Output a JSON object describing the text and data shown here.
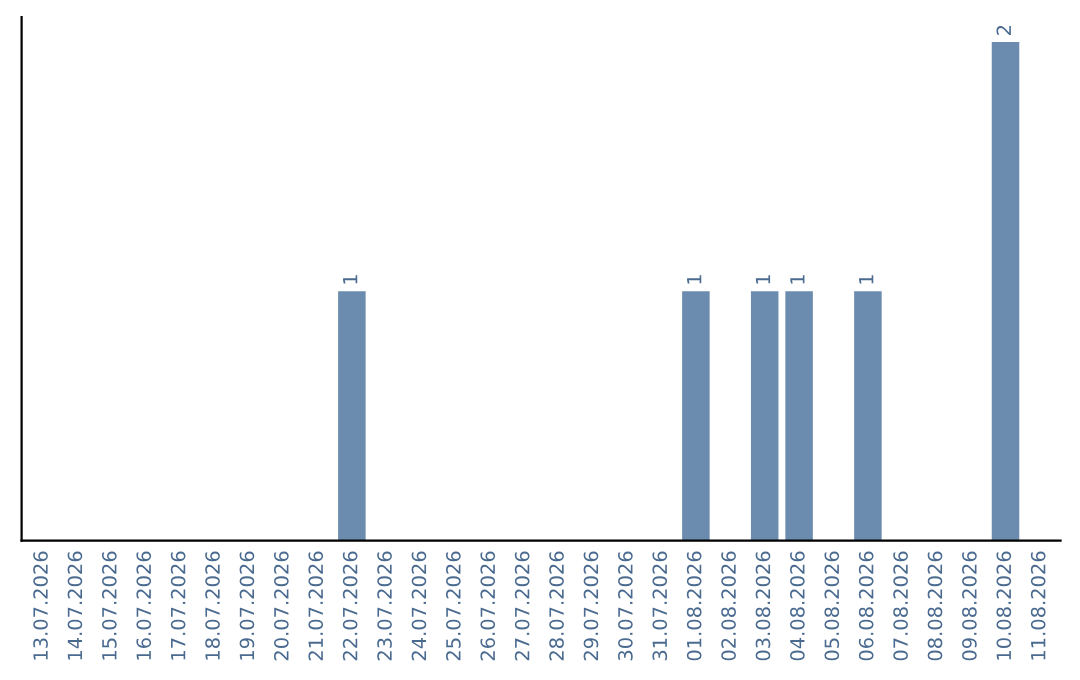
{
  "chart_data": {
    "type": "bar",
    "categories": [
      "13.07.2026",
      "14.07.2026",
      "15.07.2026",
      "16.07.2026",
      "17.07.2026",
      "18.07.2026",
      "19.07.2026",
      "20.07.2026",
      "21.07.2026",
      "22.07.2026",
      "23.07.2026",
      "24.07.2026",
      "25.07.2026",
      "26.07.2026",
      "27.07.2026",
      "28.07.2026",
      "29.07.2026",
      "30.07.2026",
      "31.07.2026",
      "01.08.2026",
      "02.08.2026",
      "03.08.2026",
      "04.08.2026",
      "05.08.2026",
      "06.08.2026",
      "07.08.2026",
      "08.08.2026",
      "09.08.2026",
      "10.08.2026",
      "11.08.2026"
    ],
    "values": [
      0,
      0,
      0,
      0,
      0,
      0,
      0,
      0,
      0,
      1,
      0,
      0,
      0,
      0,
      0,
      0,
      0,
      0,
      0,
      1,
      0,
      1,
      1,
      0,
      1,
      0,
      0,
      0,
      2,
      0
    ],
    "value_labels": [
      null,
      null,
      null,
      null,
      null,
      null,
      null,
      null,
      null,
      "1",
      null,
      null,
      null,
      null,
      null,
      null,
      null,
      null,
      null,
      "1",
      null,
      "1",
      "1",
      null,
      "1",
      null,
      null,
      null,
      "2",
      null
    ],
    "color": "#6b8cae",
    "ylim": [
      0,
      2.1
    ],
    "tick_labels": "x",
    "grid": false,
    "legend": false
  }
}
